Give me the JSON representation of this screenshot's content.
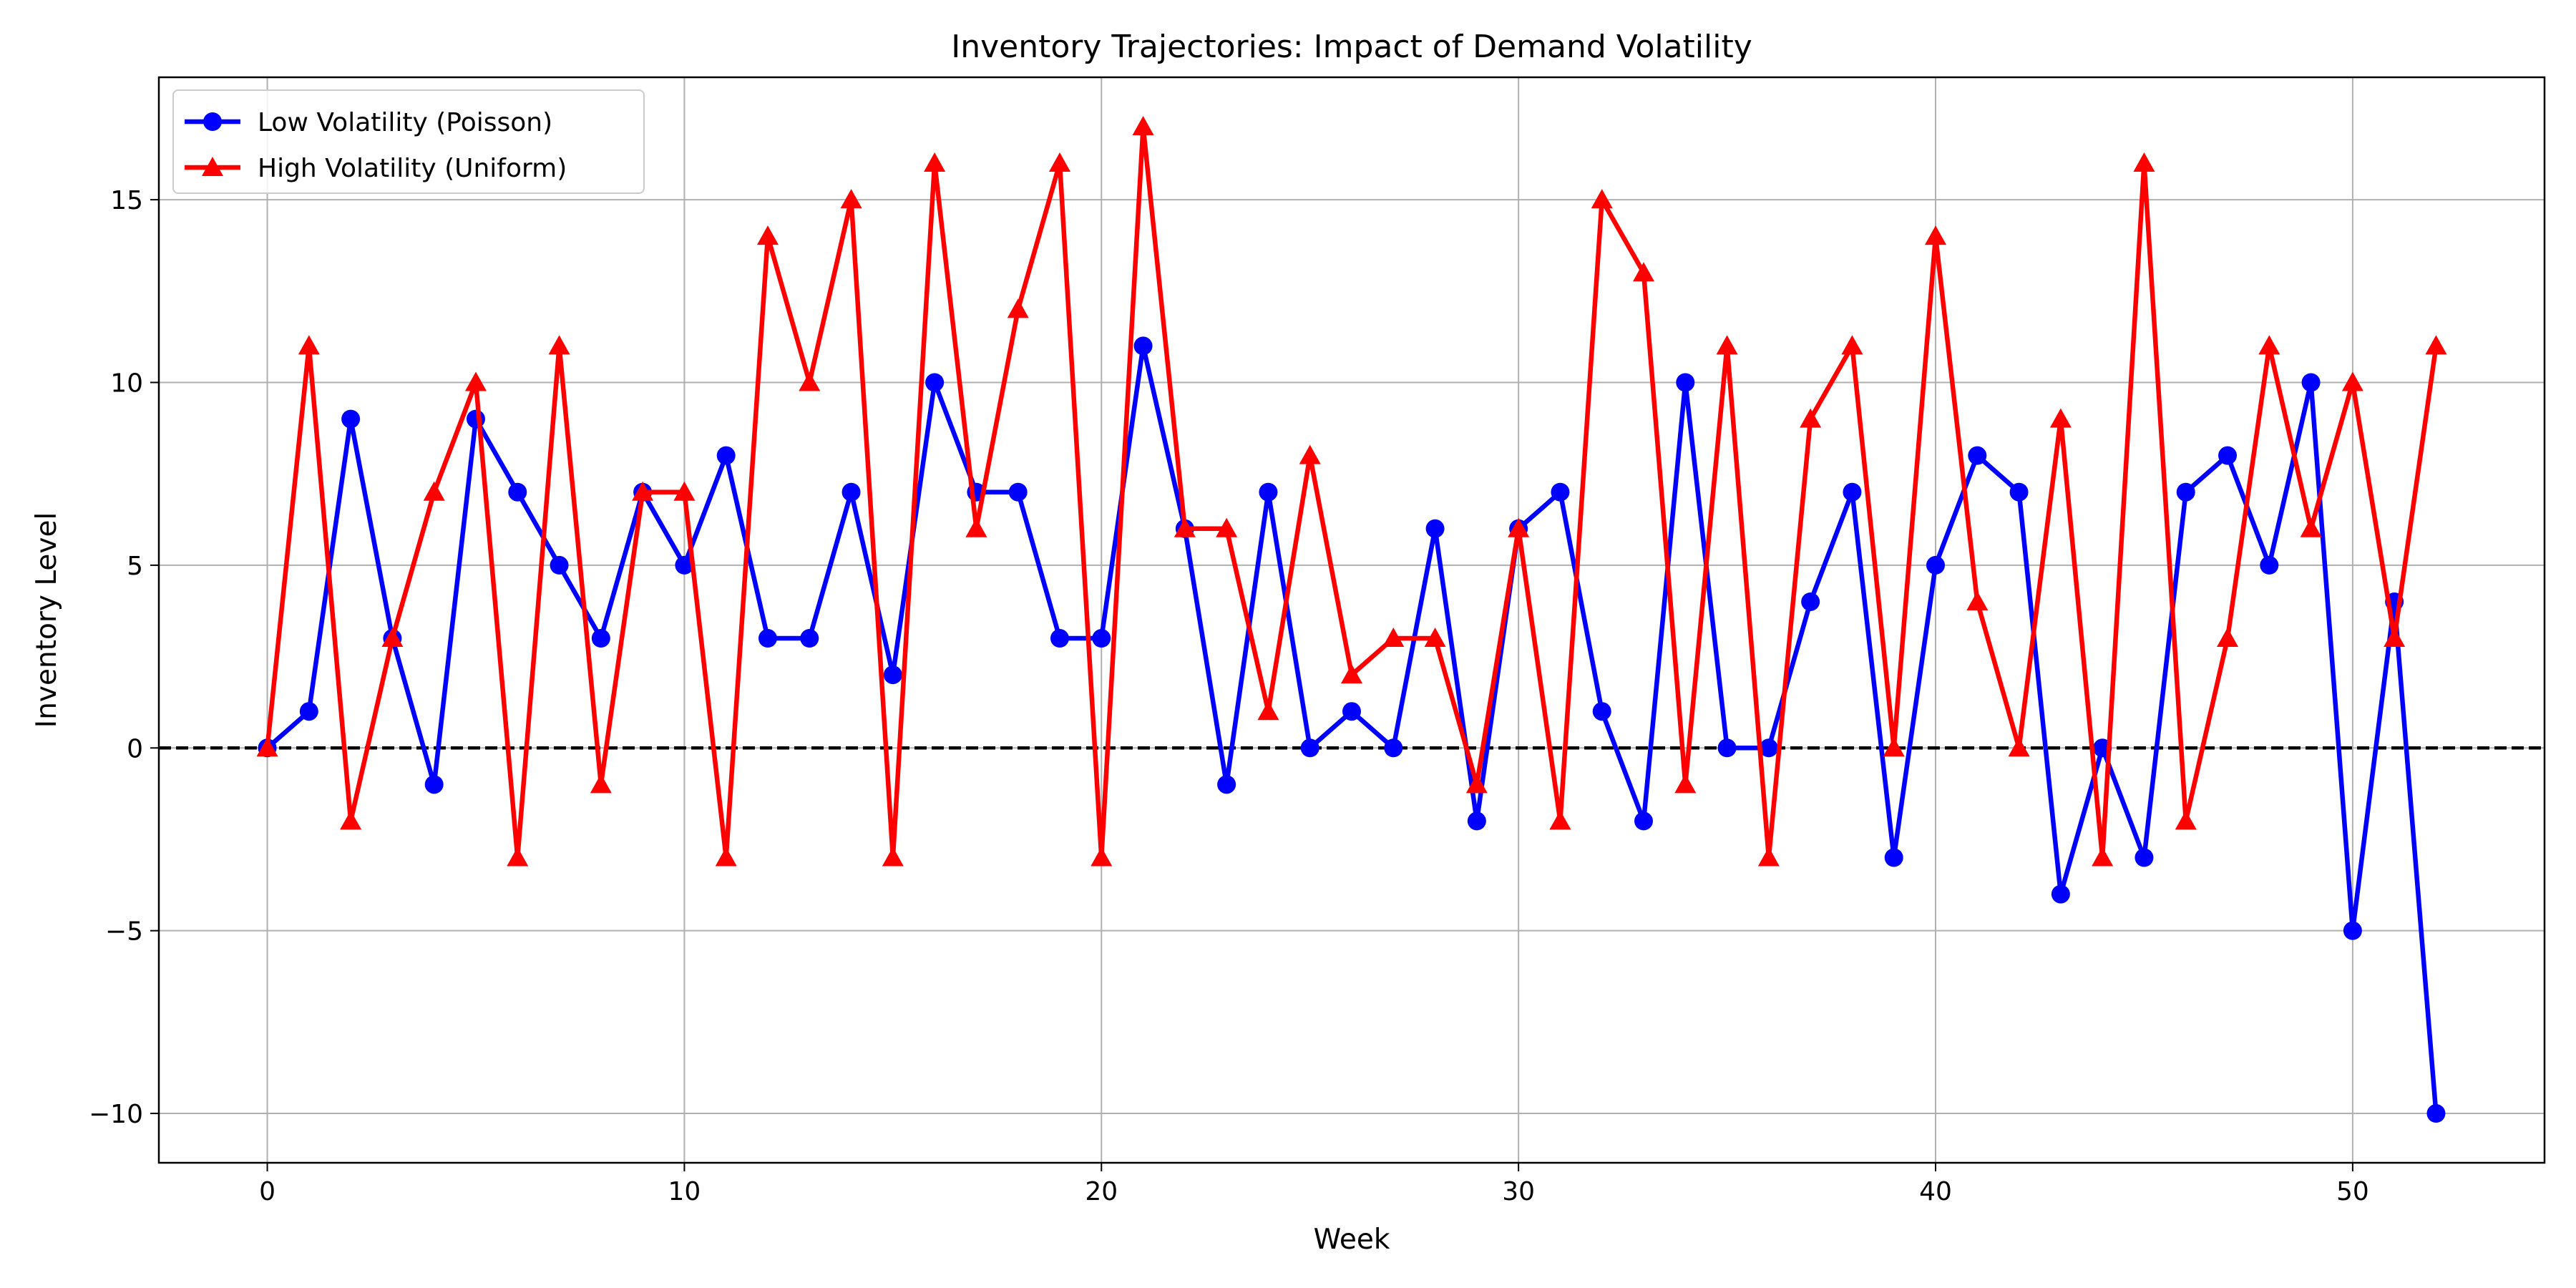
{
  "chart_data": {
    "type": "line",
    "title": "Inventory Trajectories: Impact of Demand Volatility",
    "xlabel": "Week",
    "ylabel": "Inventory Level",
    "xlim": [
      -2.6,
      54.6
    ],
    "ylim": [
      -11.35,
      18.35
    ],
    "xticks": [
      0,
      10,
      20,
      30,
      40,
      50
    ],
    "yticks": [
      -10,
      -5,
      0,
      5,
      10,
      15
    ],
    "xtick_labels": [
      "0",
      "10",
      "20",
      "30",
      "40",
      "50"
    ],
    "ytick_labels": [
      "−10",
      "−5",
      "0",
      "5",
      "10",
      "15"
    ],
    "grid": true,
    "legend_position": "top-left",
    "reference_line": {
      "y": 0,
      "style": "dashed",
      "color": "#000000"
    },
    "x": [
      0,
      1,
      2,
      3,
      4,
      5,
      6,
      7,
      8,
      9,
      10,
      11,
      12,
      13,
      14,
      15,
      16,
      17,
      18,
      19,
      20,
      21,
      22,
      23,
      24,
      25,
      26,
      27,
      28,
      29,
      30,
      31,
      32,
      33,
      34,
      35,
      36,
      37,
      38,
      39,
      40,
      41,
      42,
      43,
      44,
      45,
      46,
      47,
      48,
      49,
      50,
      51,
      52
    ],
    "series": [
      {
        "name": "Low Volatility (Poisson)",
        "color": "#0000ff",
        "marker": "circle",
        "values": [
          0,
          1,
          9,
          3,
          -1,
          9,
          7,
          5,
          3,
          7,
          5,
          8,
          3,
          3,
          7,
          2,
          10,
          7,
          7,
          3,
          3,
          11,
          6,
          -1,
          7,
          0,
          1,
          0,
          6,
          -2,
          6,
          7,
          1,
          -2,
          10,
          0,
          0,
          4,
          7,
          -3,
          5,
          8,
          7,
          -4,
          0,
          -3,
          7,
          8,
          5,
          10,
          -5,
          4,
          -10
        ]
      },
      {
        "name": "High Volatility (Uniform)",
        "color": "#ff0000",
        "marker": "triangle",
        "values": [
          0,
          11,
          -2,
          3,
          7,
          10,
          -3,
          11,
          -1,
          7,
          7,
          -3,
          14,
          10,
          15,
          -3,
          16,
          6,
          12,
          16,
          -3,
          17,
          6,
          6,
          1,
          8,
          2,
          3,
          3,
          -1,
          6,
          -2,
          15,
          13,
          -1,
          11,
          -3,
          9,
          11,
          0,
          14,
          4,
          0,
          9,
          -3,
          16,
          -2,
          3,
          11,
          6,
          10,
          3,
          11
        ]
      }
    ]
  }
}
